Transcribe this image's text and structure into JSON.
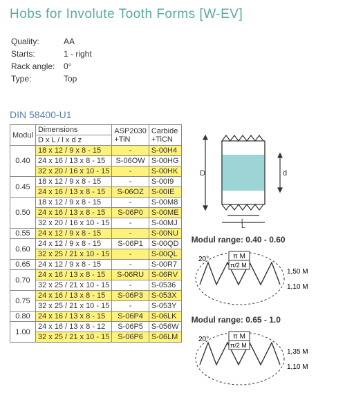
{
  "colors": {
    "title": "#5aa8a0",
    "din": "#5a7eb5",
    "highlight": "#fff27a",
    "border": "#888888",
    "text": "#2e2e2e",
    "band": "#9dd4d6"
  },
  "title": "Hobs for Involute Tooth Forms   [W-EV]",
  "specs": {
    "quality_label": "Quality:",
    "quality": "AA",
    "starts_label": "Starts:",
    "starts": "1 - right",
    "rack_label": "Rack angle:",
    "rack": "0°",
    "type_label": "Type:",
    "type": "Top"
  },
  "din": "DIN 58400-U1",
  "headers": {
    "modul": "Modul",
    "dimensions": "Dimensions",
    "dim_sub": "D x  L /   l x  d   z",
    "asp": "ASP2030\n+TiN",
    "carbide": "Carbide\n+TiCN"
  },
  "range1_label": "Modul range: 0.40 - 0.60",
  "range2_label": "Modul range: 0.65 - 1.0",
  "profile_labels": {
    "angle": "20°",
    "pi_m": "π M",
    "pi_half": "π/2 M",
    "h1a": "1,50 M",
    "h1b": "1,10 M",
    "h2a": "1,35 M",
    "h2b": "1,10 M"
  },
  "rows": [
    {
      "modul": "0.40",
      "span": 3,
      "hl": true,
      "dim": "18 x 12 /  9 x   8 - 15",
      "asp": "-",
      "carb": "S-00H4"
    },
    {
      "dim": "24 x 16 / 13 x   8 - 15",
      "asp": "S-06OW",
      "carb": "S-00HG"
    },
    {
      "hl": true,
      "dim": "32 x 20 / 16 x 10 - 15",
      "asp": "-",
      "carb": "S-00HK"
    },
    {
      "modul": "0.45",
      "span": 2,
      "dim": "18 x 12 /  9 x   8 - 15",
      "asp": "-",
      "carb": "S-00I9"
    },
    {
      "hl": true,
      "dim": "24 x 16 / 13 x   8 - 15",
      "asp": "S-06OZ",
      "carb": "S-00IE"
    },
    {
      "modul": "0.50",
      "span": 3,
      "dim": "18 x 12 /  9 x   8 - 15",
      "asp": "-",
      "carb": "S-00M8"
    },
    {
      "hl": true,
      "dim": "24 x 16 / 13 x   8 - 15",
      "asp": "S-06P0",
      "carb": "S-00ME"
    },
    {
      "dim": "32 x 20 / 16 x 10 - 15",
      "asp": "-",
      "carb": "S-00MJ"
    },
    {
      "modul": "0.55",
      "span": 1,
      "hl": true,
      "dim": "24 x 12 /  9 x   8 - 15",
      "asp": "-",
      "carb": "S-00NU"
    },
    {
      "modul": "0.60",
      "span": 2,
      "dim": "24 x 12 /  9 x  8 - 15",
      "asp": "S-06P1",
      "carb": "S-00QD"
    },
    {
      "hl": true,
      "dim": "32 x 25 / 21 x 10 - 15",
      "asp": "-",
      "carb": "S-00QL"
    },
    {
      "modul": "0.65",
      "span": 1,
      "dim": "24 x 12 /  9 x   8 - 15",
      "asp": "-",
      "carb": "S-00R7"
    },
    {
      "modul": "0.70",
      "span": 2,
      "hl": true,
      "dim": "24 x 16 / 13 x   8 - 15",
      "asp": "S-06RU",
      "carb": "S-06RV"
    },
    {
      "dim": "32 x 25 / 21 x 10 - 15",
      "asp": "-",
      "carb": "S-0536"
    },
    {
      "modul": "0.75",
      "span": 2,
      "hl": true,
      "dim": "24 x 16 / 13 x   8 - 15",
      "asp": "S-06P3",
      "carb": "S-053X"
    },
    {
      "dim": "32 x 25 / 21 x 10 - 15",
      "asp": "-",
      "carb": "S-053Y"
    },
    {
      "modul": "0.80",
      "span": 1,
      "hl": true,
      "dim": "24 x 16 / 13 x   8 - 15",
      "asp": "S-06P4",
      "carb": "S-06LK"
    },
    {
      "modul": "1.00",
      "span": 2,
      "dim": "24 x 16 / 13 x   8 - 12",
      "asp": "S-06P5",
      "carb": "S-056W"
    },
    {
      "hl": true,
      "dim": "32 x 25 / 21 x 10 - 15",
      "asp": "S-06P6",
      "carb": "S-06LM"
    }
  ]
}
